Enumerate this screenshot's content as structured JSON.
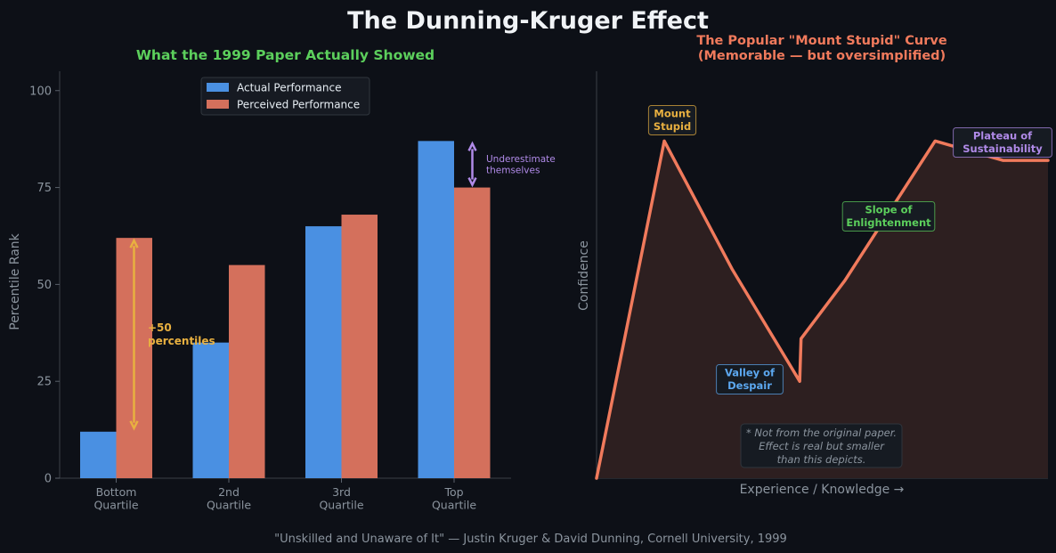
{
  "figure": {
    "title": "The Dunning-Kruger Effect",
    "footer": "\"Unskilled and Unaware of It\" — Justin Kruger & David Dunning, Cornell University, 1999"
  },
  "colors": {
    "background": "#0d1017",
    "actual": "#4a90e2",
    "perceived": "#d4705c",
    "curve": "#f07a5c",
    "left_title": "#5ccf5c",
    "right_title": "#f07a5c",
    "gap_arrow": "#e8b040",
    "under_arrow": "#b08ae8",
    "axis_text": "#8b949e"
  },
  "chart_data": [
    {
      "type": "bar",
      "title": "What the 1999 Paper Actually Showed",
      "xlabel": "",
      "ylabel": "Percentile Rank",
      "categories": [
        "Bottom\nQuartile",
        "2nd\nQuartile",
        "3rd\nQuartile",
        "Top\nQuartile"
      ],
      "series": [
        {
          "name": "Actual Performance",
          "values": [
            12,
            35,
            65,
            87
          ]
        },
        {
          "name": "Perceived Performance",
          "values": [
            62,
            55,
            68,
            75
          ]
        }
      ],
      "ylim": [
        0,
        105
      ],
      "yticks": [
        0,
        25,
        50,
        75,
        100
      ],
      "grid": false,
      "legend": "top-center",
      "annotations": [
        {
          "text": "+50\npercentiles",
          "category": "Bottom\nQuartile",
          "from": 12,
          "to": 62
        },
        {
          "text": "Underestimate\nthemselves",
          "category": "Top\nQuartile",
          "from": 75,
          "to": 87
        }
      ]
    },
    {
      "type": "line",
      "title": "The Popular \"Mount Stupid\" Curve\n(Memorable — but oversimplified)",
      "xlabel": "Experience / Knowledge →",
      "ylabel": "Confidence",
      "x": [
        0,
        15,
        20,
        30,
        45,
        45.3,
        55,
        75,
        90,
        100
      ],
      "y": [
        0,
        87,
        76,
        54,
        25,
        36,
        51,
        87,
        82,
        82
      ],
      "xlim": [
        0,
        100
      ],
      "ylim": [
        0,
        105
      ],
      "filled": true,
      "grid": false,
      "annotations": [
        {
          "text": "Mount\nStupid",
          "x": 17,
          "y": 98,
          "color": "#e8b040"
        },
        {
          "text": "Valley of\nDespair",
          "x": 34,
          "y": 27,
          "color": "#5ca8f0"
        },
        {
          "text": "Slope of\nEnlightenment",
          "x": 64.5,
          "y": 72,
          "color": "#5ccf5c"
        },
        {
          "text": "Plateau of\nSustainability",
          "x": 90,
          "y": 91,
          "color": "#b08ae8"
        }
      ],
      "note": "* Not from the original paper.\n  Effect is real but smaller\n  than this depicts."
    }
  ]
}
